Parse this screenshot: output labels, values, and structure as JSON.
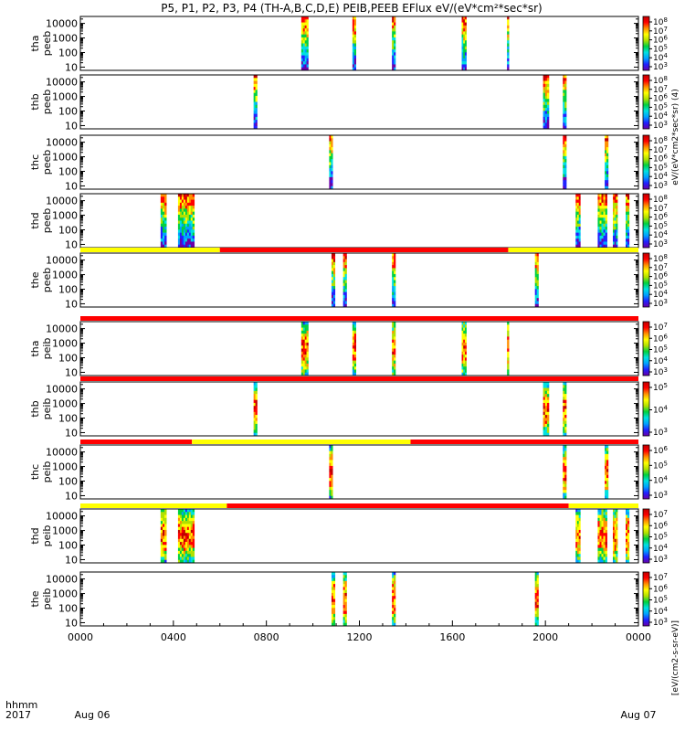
{
  "title": "P5, P1, P2, P3, P4 (TH-A,B,C,D,E) PEIB,PEEB EFlux eV/(eV*cm²*sec*sr)",
  "footer": {
    "label_top": "hhmm",
    "label_bottom": "2017",
    "x_ticks": [
      "0000",
      "0400",
      "0800",
      "1200",
      "1600",
      "2000",
      "0000"
    ],
    "x_ticks_hours": [
      0,
      4,
      8,
      12,
      16,
      20,
      24
    ],
    "date_start": "Aug 06",
    "date_end": "Aug 07"
  },
  "colorbar_label": "[eV/(cm2-s-sr-eV)]",
  "colorbar_label_top": "eV/(eV*cm2*sec*sr) (4)",
  "colors": {
    "flag_red": "#ff0000",
    "flag_yellow": "#ffff00",
    "spectrogram_scale": [
      "#6a00a8",
      "#2020ff",
      "#00a0ff",
      "#00e0e0",
      "#00d040",
      "#b0e000",
      "#ffff00",
      "#ff9000",
      "#ff0000",
      "#c00000"
    ]
  },
  "chart_data": {
    "type": "heatmap",
    "x_unit": "hour of day (UT), 2017 Aug 06",
    "xlim": [
      0,
      24
    ],
    "y_scale": "log",
    "y_ticks": [
      "10000",
      "1000",
      "100",
      "10"
    ],
    "y_tick_values": [
      10000,
      1000,
      100,
      10
    ],
    "ylim": [
      6,
      30000
    ],
    "panels": [
      {
        "label1": "tha",
        "label2": "peeb",
        "cbar_labels": [
          "10^8",
          "10^7",
          "10^6",
          "10^5",
          "10^4",
          "10^3"
        ],
        "intervals": [
          [
            9.5,
            9.8
          ],
          [
            11.7,
            11.85
          ],
          [
            13.4,
            13.55
          ],
          [
            16.4,
            16.6
          ],
          [
            18.35,
            18.4
          ]
        ],
        "flag": []
      },
      {
        "label1": "thb",
        "label2": "peeb",
        "cbar_labels": [
          "10^8",
          "10^7",
          "10^6",
          "10^5",
          "10^4",
          "10^3"
        ],
        "intervals": [
          [
            7.45,
            7.6
          ],
          [
            19.9,
            20.15
          ],
          [
            20.75,
            20.9
          ]
        ],
        "flag": []
      },
      {
        "label1": "thc",
        "label2": "peeb",
        "cbar_labels": [
          "10^8",
          "10^7",
          "10^6",
          "10^5",
          "10^4",
          "10^3"
        ],
        "intervals": [
          [
            10.7,
            10.85
          ],
          [
            20.75,
            20.9
          ],
          [
            22.55,
            22.7
          ]
        ],
        "flag": []
      },
      {
        "label1": "thd",
        "label2": "peeb",
        "cbar_labels": [
          "10^8",
          "10^7",
          "10^6",
          "10^5",
          "10^4",
          "10^3"
        ],
        "intervals": [
          [
            3.45,
            3.7
          ],
          [
            4.2,
            4.9
          ],
          [
            21.3,
            21.5
          ],
          [
            22.25,
            22.65
          ],
          [
            22.9,
            23.1
          ],
          [
            23.45,
            23.6
          ]
        ],
        "flag": []
      },
      {
        "label1": "the",
        "label2": "peeb",
        "cbar_labels": [
          "10^8",
          "10^7",
          "10^6",
          "10^5",
          "10^4",
          "10^3"
        ],
        "intervals": [
          [
            10.8,
            10.95
          ],
          [
            11.3,
            11.45
          ],
          [
            13.4,
            13.55
          ],
          [
            19.55,
            19.7
          ]
        ],
        "flag": [
          [
            0,
            6,
            "yellow"
          ],
          [
            6,
            18.4,
            "red"
          ],
          [
            18.4,
            24,
            "yellow"
          ]
        ]
      },
      {
        "label1": "tha",
        "label2": "peib",
        "cbar_labels": [
          "10^7",
          "10^6",
          "10^5",
          "10^4",
          "10^3"
        ],
        "intervals": [
          [
            9.5,
            9.8
          ],
          [
            11.7,
            11.85
          ],
          [
            13.4,
            13.55
          ],
          [
            16.4,
            16.6
          ],
          [
            18.35,
            18.4
          ]
        ],
        "flag": [
          [
            0,
            24,
            "red"
          ]
        ]
      },
      {
        "label1": "thb",
        "label2": "peib",
        "cbar_labels": [
          "10^5",
          "10^4",
          "10^3"
        ],
        "intervals": [
          [
            7.45,
            7.6
          ],
          [
            19.9,
            20.15
          ],
          [
            20.75,
            20.9
          ]
        ],
        "flag": [
          [
            0,
            24,
            "red"
          ]
        ]
      },
      {
        "label1": "thc",
        "label2": "peib",
        "cbar_labels": [
          "10^6",
          "10^5",
          "10^4",
          "10^3"
        ],
        "intervals": [
          [
            10.7,
            10.85
          ],
          [
            20.75,
            20.9
          ],
          [
            22.55,
            22.7
          ]
        ],
        "flag": [
          [
            0,
            4.8,
            "red"
          ],
          [
            4.8,
            14.2,
            "yellow"
          ],
          [
            14.2,
            24,
            "red"
          ]
        ]
      },
      {
        "label1": "thd",
        "label2": "peib",
        "cbar_labels": [
          "10^7",
          "10^6",
          "10^5",
          "10^4",
          "10^3"
        ],
        "intervals": [
          [
            3.45,
            3.7
          ],
          [
            4.2,
            4.9
          ],
          [
            21.3,
            21.5
          ],
          [
            22.25,
            22.65
          ],
          [
            22.9,
            23.1
          ],
          [
            23.45,
            23.6
          ]
        ],
        "flag": [
          [
            0,
            6.3,
            "yellow"
          ],
          [
            6.3,
            21.0,
            "red"
          ],
          [
            21.0,
            24,
            "yellow"
          ]
        ]
      },
      {
        "label1": "the",
        "label2": "peib",
        "cbar_labels": [
          "10^7",
          "10^6",
          "10^5",
          "10^4",
          "10^3"
        ],
        "intervals": [
          [
            10.8,
            10.95
          ],
          [
            11.3,
            11.45
          ],
          [
            13.4,
            13.55
          ],
          [
            19.55,
            19.7
          ]
        ],
        "flag": []
      }
    ]
  }
}
